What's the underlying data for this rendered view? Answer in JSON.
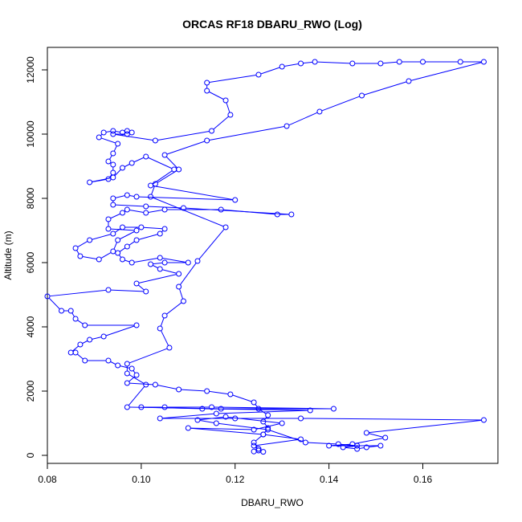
{
  "chart_data": {
    "type": "line",
    "title": "ORCAS RF18 DBARU_RWO (Log)",
    "xlabel": "DBARU_RWO",
    "ylabel": "Altitude (m)",
    "xlim": [
      0.08,
      0.176
    ],
    "ylim": [
      -250,
      12700
    ],
    "x_ticks": [
      0.08,
      0.1,
      0.12,
      0.14,
      0.16
    ],
    "x_tick_labels": [
      "0.08",
      "0.10",
      "0.12",
      "0.14",
      "0.16"
    ],
    "y_ticks": [
      0,
      2000,
      4000,
      6000,
      8000,
      10000,
      12000
    ],
    "y_tick_labels": [
      "0",
      "2000",
      "4000",
      "6000",
      "8000",
      "10000",
      "12000"
    ],
    "grid": false,
    "legend": "none",
    "marker": "open-circle",
    "series_color": "#0000ff",
    "series": [
      {
        "points": [
          [
            0.124,
            120
          ],
          [
            0.125,
            150
          ],
          [
            0.126,
            110
          ],
          [
            0.125,
            200
          ],
          [
            0.124,
            400
          ],
          [
            0.126,
            650
          ],
          [
            0.127,
            850
          ],
          [
            0.126,
            1050
          ],
          [
            0.127,
            1250
          ],
          [
            0.125,
            1450
          ],
          [
            0.124,
            1650
          ],
          [
            0.119,
            1900
          ],
          [
            0.114,
            2000
          ],
          [
            0.108,
            2050
          ],
          [
            0.103,
            2200
          ],
          [
            0.097,
            2250
          ],
          [
            0.099,
            2500
          ],
          [
            0.098,
            2700
          ],
          [
            0.095,
            2800
          ],
          [
            0.093,
            2950
          ],
          [
            0.088,
            2950
          ],
          [
            0.086,
            3200
          ],
          [
            0.085,
            3200
          ],
          [
            0.087,
            3450
          ],
          [
            0.089,
            3600
          ],
          [
            0.092,
            3700
          ],
          [
            0.099,
            4050
          ],
          [
            0.088,
            4050
          ],
          [
            0.086,
            4250
          ],
          [
            0.085,
            4500
          ],
          [
            0.083,
            4500
          ],
          [
            0.08,
            4950
          ],
          [
            0.093,
            5150
          ],
          [
            0.101,
            5100
          ],
          [
            0.099,
            5350
          ],
          [
            0.108,
            5650
          ],
          [
            0.104,
            5800
          ],
          [
            0.102,
            5950
          ],
          [
            0.105,
            6000
          ],
          [
            0.11,
            6000
          ],
          [
            0.104,
            6150
          ],
          [
            0.098,
            6000
          ],
          [
            0.096,
            6100
          ],
          [
            0.095,
            6300
          ],
          [
            0.097,
            6500
          ],
          [
            0.099,
            6700
          ],
          [
            0.104,
            6900
          ],
          [
            0.105,
            7050
          ],
          [
            0.1,
            7100
          ],
          [
            0.096,
            7100
          ],
          [
            0.094,
            6900
          ],
          [
            0.089,
            6700
          ],
          [
            0.086,
            6450
          ],
          [
            0.087,
            6200
          ],
          [
            0.091,
            6100
          ],
          [
            0.094,
            6350
          ],
          [
            0.095,
            6700
          ],
          [
            0.099,
            7000
          ],
          [
            0.093,
            7050
          ],
          [
            0.093,
            7350
          ],
          [
            0.096,
            7550
          ],
          [
            0.097,
            7650
          ],
          [
            0.101,
            7550
          ],
          [
            0.105,
            7650
          ],
          [
            0.117,
            7650
          ],
          [
            0.129,
            7500
          ],
          [
            0.132,
            7500
          ],
          [
            0.109,
            7700
          ],
          [
            0.101,
            7750
          ],
          [
            0.094,
            7800
          ],
          [
            0.094,
            8000
          ],
          [
            0.097,
            8100
          ],
          [
            0.099,
            8050
          ],
          [
            0.12,
            7950
          ],
          [
            0.102,
            8400
          ],
          [
            0.107,
            8900
          ],
          [
            0.101,
            9300
          ],
          [
            0.098,
            9100
          ],
          [
            0.096,
            8950
          ],
          [
            0.094,
            8650
          ],
          [
            0.089,
            8500
          ],
          [
            0.093,
            8600
          ],
          [
            0.094,
            8800
          ],
          [
            0.094,
            9050
          ],
          [
            0.093,
            9150
          ],
          [
            0.094,
            9400
          ],
          [
            0.095,
            9700
          ],
          [
            0.091,
            9900
          ],
          [
            0.092,
            10050
          ],
          [
            0.094,
            10100
          ],
          [
            0.096,
            10050
          ],
          [
            0.097,
            10100
          ],
          [
            0.098,
            10050
          ],
          [
            0.097,
            10000
          ],
          [
            0.094,
            10000
          ],
          [
            0.103,
            9800
          ],
          [
            0.115,
            10100
          ],
          [
            0.119,
            10600
          ],
          [
            0.118,
            11050
          ],
          [
            0.114,
            11350
          ],
          [
            0.114,
            11600
          ],
          [
            0.125,
            11850
          ],
          [
            0.13,
            12100
          ],
          [
            0.134,
            12200
          ],
          [
            0.137,
            12250
          ],
          [
            0.145,
            12200
          ],
          [
            0.151,
            12200
          ],
          [
            0.155,
            12250
          ],
          [
            0.16,
            12250
          ],
          [
            0.168,
            12250
          ],
          [
            0.173,
            12250
          ],
          [
            0.157,
            11650
          ],
          [
            0.147,
            11200
          ],
          [
            0.138,
            10700
          ],
          [
            0.131,
            10250
          ],
          [
            0.114,
            9800
          ],
          [
            0.105,
            9350
          ],
          [
            0.108,
            8900
          ],
          [
            0.103,
            8450
          ],
          [
            0.102,
            8050
          ],
          [
            0.118,
            7100
          ],
          [
            0.112,
            6050
          ],
          [
            0.108,
            5250
          ],
          [
            0.109,
            4800
          ],
          [
            0.105,
            4350
          ],
          [
            0.104,
            3950
          ],
          [
            0.106,
            3350
          ],
          [
            0.097,
            2850
          ],
          [
            0.097,
            2550
          ],
          [
            0.101,
            2200
          ],
          [
            0.097,
            1500
          ],
          [
            0.117,
            1450
          ],
          [
            0.141,
            1450
          ],
          [
            0.115,
            1500
          ],
          [
            0.105,
            1500
          ],
          [
            0.1,
            1500
          ],
          [
            0.113,
            1450
          ],
          [
            0.136,
            1400
          ],
          [
            0.116,
            1300
          ],
          [
            0.104,
            1150
          ],
          [
            0.12,
            1150
          ],
          [
            0.134,
            1150
          ],
          [
            0.173,
            1100
          ],
          [
            0.148,
            700
          ],
          [
            0.152,
            550
          ],
          [
            0.145,
            350
          ],
          [
            0.14,
            300
          ],
          [
            0.151,
            300
          ],
          [
            0.148,
            250
          ],
          [
            0.146,
            200
          ],
          [
            0.143,
            250
          ],
          [
            0.146,
            300
          ],
          [
            0.142,
            350
          ],
          [
            0.135,
            400
          ],
          [
            0.127,
            800
          ],
          [
            0.116,
            1000
          ],
          [
            0.112,
            1100
          ],
          [
            0.118,
            1200
          ],
          [
            0.13,
            1000
          ],
          [
            0.124,
            800
          ],
          [
            0.11,
            850
          ],
          [
            0.126,
            650
          ],
          [
            0.134,
            500
          ],
          [
            0.124,
            300
          ],
          [
            0.125,
            200
          ]
        ]
      }
    ]
  }
}
